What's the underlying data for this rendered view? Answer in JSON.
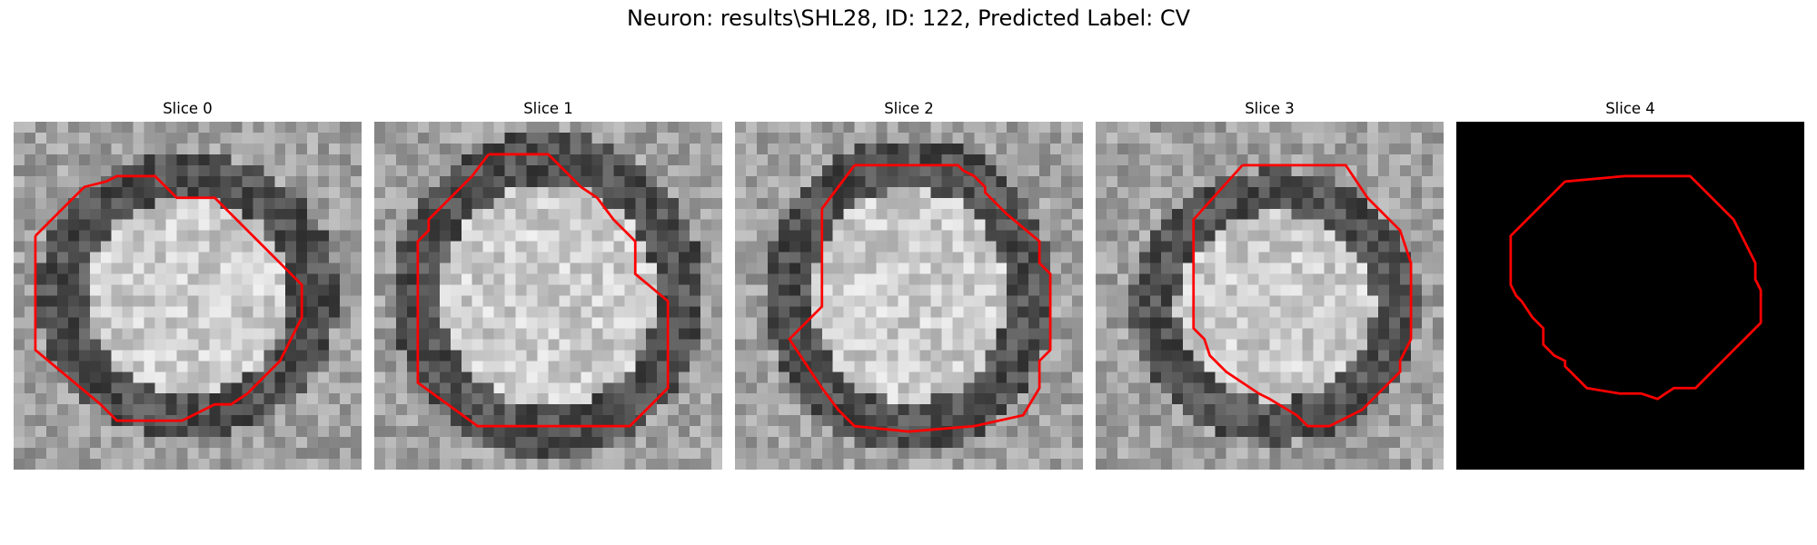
{
  "figure": {
    "title": "Neuron: results\\SHL28, ID: 122, Predicted Label: CV"
  },
  "slices": [
    {
      "title": "Slice 0",
      "image": "grayscale-cell-patch",
      "blank": false
    },
    {
      "title": "Slice 1",
      "image": "grayscale-cell-patch",
      "blank": false
    },
    {
      "title": "Slice 2",
      "image": "grayscale-cell-patch",
      "blank": false
    },
    {
      "title": "Slice 3",
      "image": "grayscale-cell-patch",
      "blank": false
    },
    {
      "title": "Slice 4",
      "image": "black-mask",
      "blank": true
    }
  ],
  "colors": {
    "contour": "#ff0000",
    "background": "#ffffff",
    "mask": "#000000"
  }
}
